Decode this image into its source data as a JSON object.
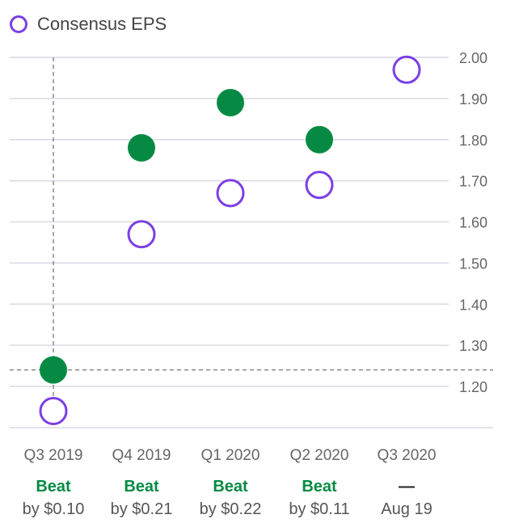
{
  "legend": {
    "consensus_label": "Consensus EPS"
  },
  "colors": {
    "estimate": "#7b3fe4",
    "actual": "#068a43",
    "grid": "#d9d9e3",
    "crosshair": "#888888"
  },
  "chart_data": {
    "type": "scatter",
    "categories": [
      "Q3 2019",
      "Q4 2019",
      "Q1 2020",
      "Q2 2020",
      "Q3 2020"
    ],
    "series": [
      {
        "name": "Consensus EPS",
        "values": [
          1.14,
          1.57,
          1.67,
          1.69,
          1.97
        ]
      },
      {
        "values": [
          1.24,
          1.78,
          1.89,
          1.8,
          null
        ]
      }
    ],
    "results": [
      {
        "label": "Beat",
        "detail": "by $0.10"
      },
      {
        "label": "Beat",
        "detail": "by $0.21"
      },
      {
        "label": "Beat",
        "detail": "by $0.22"
      },
      {
        "label": "Beat",
        "detail": "by $0.11"
      },
      {
        "label": "—",
        "detail": "Aug 19"
      }
    ],
    "yticks": [
      "2.00",
      "1.90",
      "1.80",
      "1.70",
      "1.60",
      "1.50",
      "1.40",
      "1.30",
      "1.20"
    ],
    "ylim": [
      1.1,
      2.0
    ],
    "y_axis_position": "right",
    "grid": true,
    "legend_position": "top-left",
    "crosshair": {
      "category_index": 0,
      "y": 1.24
    }
  }
}
